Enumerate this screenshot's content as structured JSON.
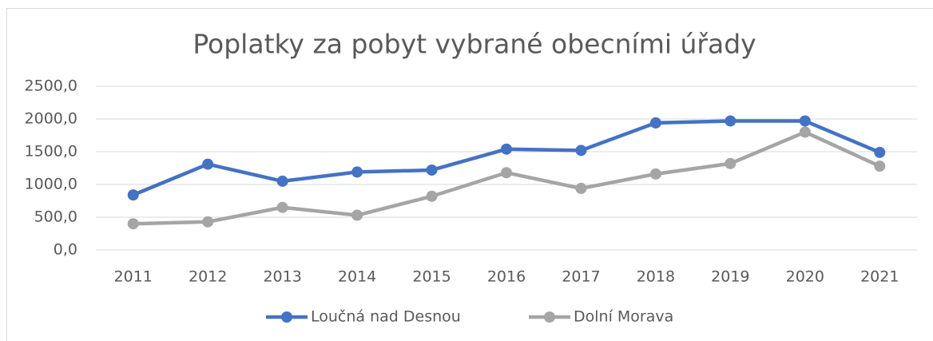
{
  "chart_data": {
    "type": "line",
    "title": "Poplatky za pobyt vybrané obecními úřady",
    "categories": [
      "2011",
      "2012",
      "2013",
      "2014",
      "2015",
      "2016",
      "2017",
      "2018",
      "2019",
      "2020",
      "2021"
    ],
    "series": [
      {
        "name": "Loučná nad Desnou",
        "color": "#4472c4",
        "values": [
          840,
          1310,
          1050,
          1190,
          1220,
          1540,
          1520,
          1940,
          1970,
          1970,
          1490
        ]
      },
      {
        "name": "Dolní Morava",
        "color": "#a5a5a5",
        "values": [
          400,
          430,
          650,
          530,
          820,
          1180,
          940,
          1160,
          1320,
          1800,
          1280
        ]
      }
    ],
    "ylim": [
      0,
      2500
    ],
    "yticks": [
      {
        "value": 0,
        "label": "0,0"
      },
      {
        "value": 500,
        "label": "500,0"
      },
      {
        "value": 1000,
        "label": "1000,0"
      },
      {
        "value": 1500,
        "label": "1500,0"
      },
      {
        "value": 2000,
        "label": "2000,0"
      },
      {
        "value": 2500,
        "label": "2500,0"
      }
    ],
    "grid": true,
    "legend": "bottom"
  }
}
